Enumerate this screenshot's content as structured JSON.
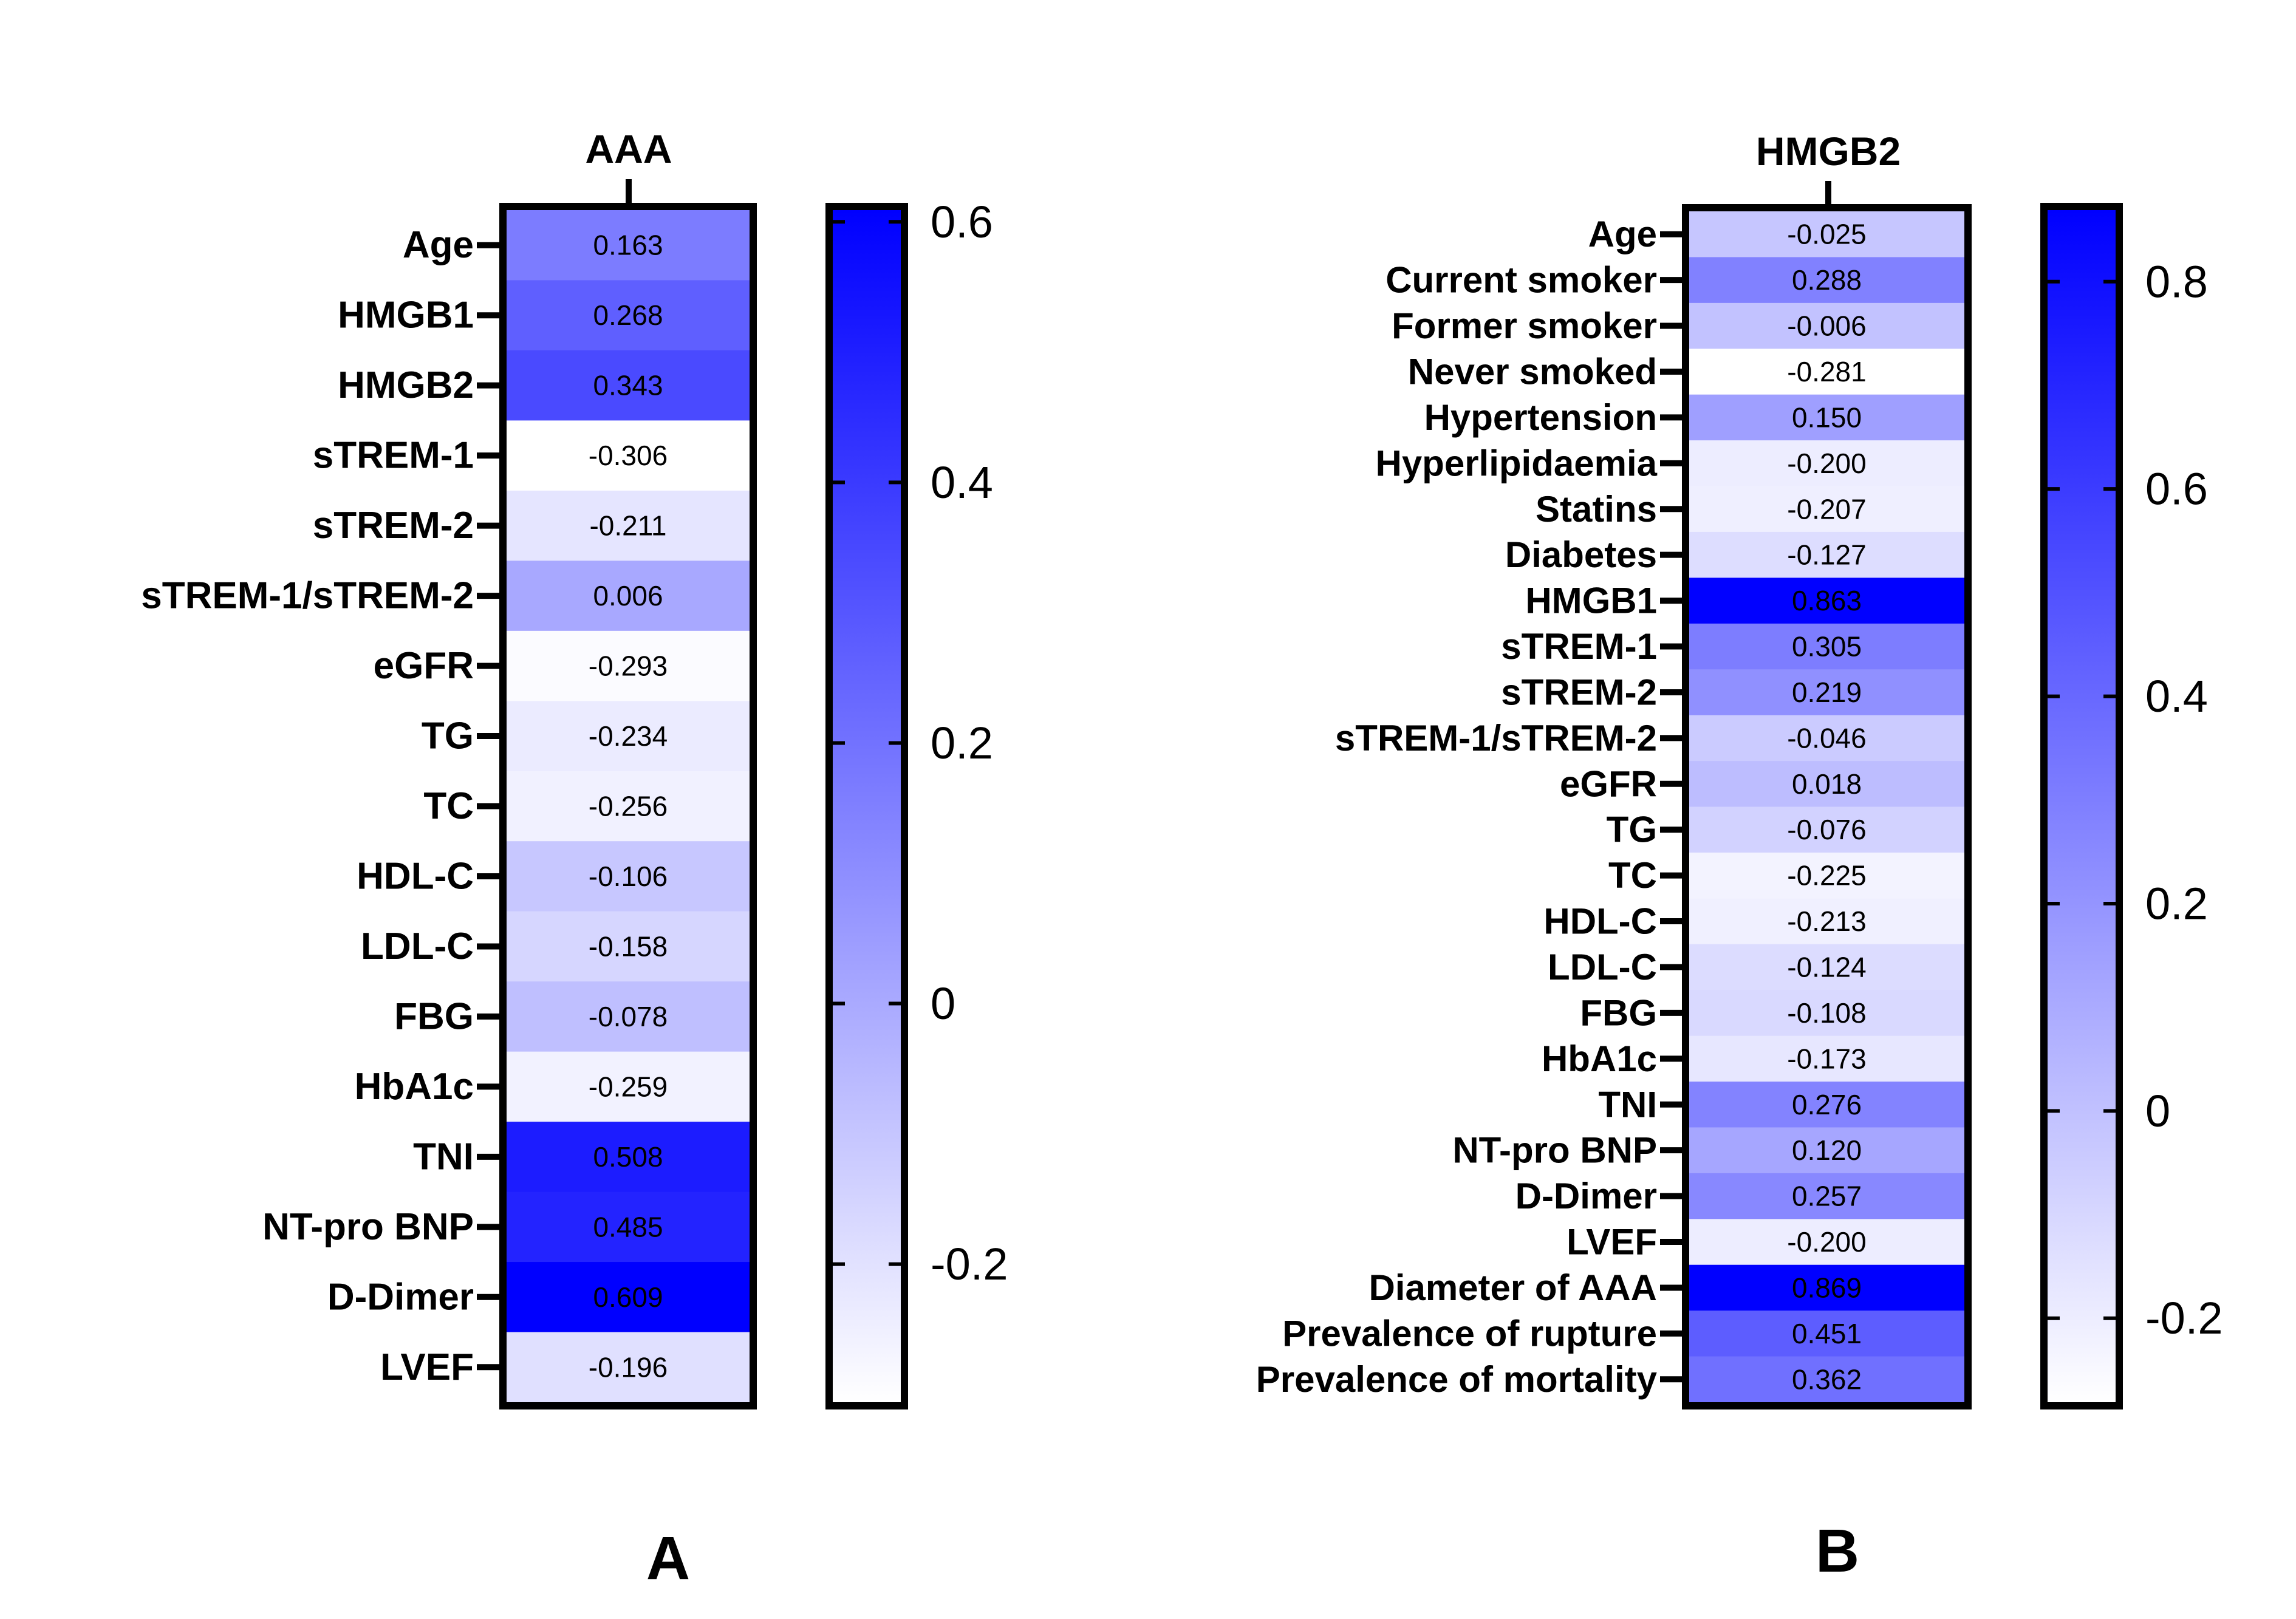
{
  "chart_data": [
    {
      "type": "heatmap",
      "panel_label": "A",
      "title": "AAA",
      "columns": [
        "AAA"
      ],
      "rows": [
        "Age",
        "HMGB1",
        "HMGB2",
        "sTREM-1",
        "sTREM-2",
        "sTREM-1/sTREM-2",
        "eGFR",
        "TG",
        "TC",
        "HDL-C",
        "LDL-C",
        "FBG",
        "HbA1c",
        "TNI",
        "NT-pro BNP",
        "D-Dimer",
        "LVEF"
      ],
      "values": [
        0.163,
        0.268,
        0.343,
        -0.306,
        -0.211,
        0.006,
        -0.293,
        -0.234,
        -0.256,
        -0.106,
        -0.158,
        -0.078,
        -0.259,
        0.508,
        0.485,
        0.609,
        -0.196
      ],
      "value_labels": [
        "0.163",
        "0.268",
        "0.343",
        "-0.306",
        "-0.211",
        "0.006",
        "-0.293",
        "-0.234",
        "-0.256",
        "-0.106",
        "-0.158",
        "-0.078",
        "-0.259",
        "0.508",
        "0.485",
        "0.609",
        "-0.196"
      ],
      "colorbar": {
        "range": [
          -0.306,
          0.609
        ],
        "ticks": [
          -0.2,
          0,
          0.2,
          0.4,
          0.6
        ],
        "tick_labels": [
          "-0.2",
          "0",
          "0.2",
          "0.4",
          "0.6"
        ],
        "low_color": "#ffffff",
        "high_color": "#0000ff"
      }
    },
    {
      "type": "heatmap",
      "panel_label": "B",
      "title": "HMGB2",
      "columns": [
        "HMGB2"
      ],
      "rows": [
        "Age",
        "Current smoker",
        "Former smoker",
        "Never smoked",
        "Hypertension",
        "Hyperlipidaemia",
        "Statins",
        "Diabetes",
        "HMGB1",
        "sTREM-1",
        "sTREM-2",
        "sTREM-1/sTREM-2",
        "eGFR",
        "TG",
        "TC",
        "HDL-C",
        "LDL-C",
        "FBG",
        "HbA1c",
        "TNI",
        "NT-pro BNP",
        "D-Dimer",
        "LVEF",
        "Diameter of AAA",
        "Prevalence of rupture",
        "Prevalence of mortality"
      ],
      "values": [
        -0.025,
        0.288,
        -0.006,
        -0.281,
        0.15,
        -0.2,
        -0.207,
        -0.127,
        0.863,
        0.305,
        0.219,
        -0.046,
        0.018,
        -0.076,
        -0.225,
        -0.213,
        -0.124,
        -0.108,
        -0.173,
        0.276,
        0.12,
        0.257,
        -0.2,
        0.869,
        0.451,
        0.362
      ],
      "value_labels": [
        "-0.025",
        "0.288",
        "-0.006",
        "-0.281",
        "0.150",
        "-0.200",
        "-0.207",
        "-0.127",
        "0.863",
        "0.305",
        "0.219",
        "-0.046",
        "0.018",
        "-0.076",
        "-0.225",
        "-0.213",
        "-0.124",
        "-0.108",
        "-0.173",
        "0.276",
        "0.120",
        "0.257",
        "-0.200",
        "0.869",
        "0.451",
        "0.362"
      ],
      "colorbar": {
        "range": [
          -0.281,
          0.869
        ],
        "ticks": [
          -0.2,
          0,
          0.2,
          0.4,
          0.6,
          0.8
        ],
        "tick_labels": [
          "-0.2",
          "0",
          "0.2",
          "0.4",
          "0.6",
          "0.8"
        ],
        "low_color": "#ffffff",
        "high_color": "#0000ff"
      }
    }
  ]
}
